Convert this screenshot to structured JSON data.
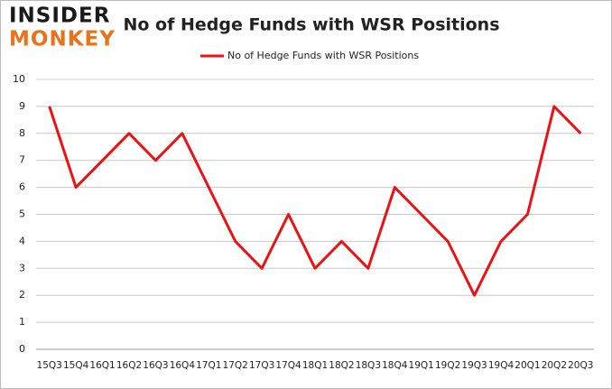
{
  "logo": {
    "top": "INSIDER",
    "bottom": "MONKEY"
  },
  "chart_data": {
    "type": "line",
    "title": "No of Hedge Funds with WSR Positions",
    "categories": [
      "15Q3",
      "15Q4",
      "16Q1",
      "16Q2",
      "16Q3",
      "16Q4",
      "17Q1",
      "17Q2",
      "17Q3",
      "17Q4",
      "18Q1",
      "18Q2",
      "18Q3",
      "18Q4",
      "19Q1",
      "19Q2",
      "19Q3",
      "19Q4",
      "20Q1",
      "20Q2",
      "20Q3"
    ],
    "series": [
      {
        "name": "No of Hedge Funds with WSR Positions",
        "color": "#ee1111",
        "values": [
          9,
          6,
          7,
          8,
          7,
          8,
          6,
          4,
          3,
          5,
          3,
          4,
          3,
          6,
          5,
          4,
          2,
          4,
          5,
          9,
          8
        ]
      }
    ],
    "ylim": [
      0,
      10
    ],
    "yticks": [
      0,
      1,
      2,
      3,
      4,
      5,
      6,
      7,
      8,
      9,
      10
    ],
    "grid": true,
    "legend": "top"
  }
}
